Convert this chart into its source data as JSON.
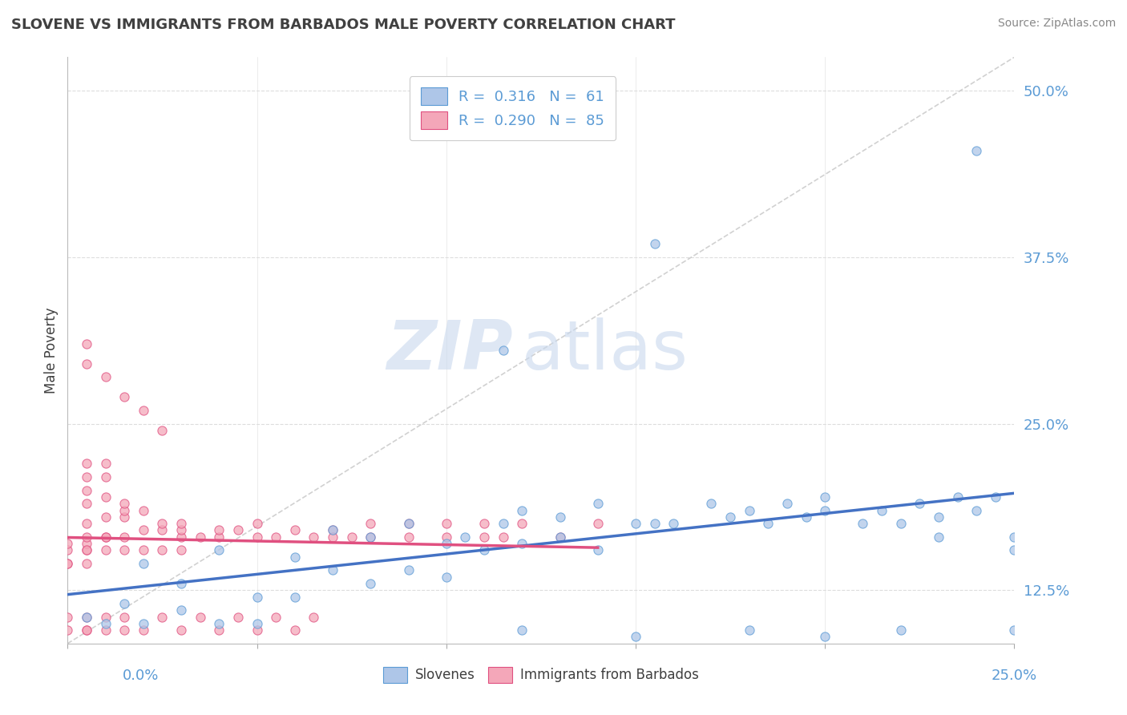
{
  "title": "SLOVENE VS IMMIGRANTS FROM BARBADOS MALE POVERTY CORRELATION CHART",
  "source": "Source: ZipAtlas.com",
  "ylabel": "Male Poverty",
  "xlim": [
    0.0,
    0.25
  ],
  "ylim": [
    0.085,
    0.525
  ],
  "yticks": [
    0.125,
    0.25,
    0.375,
    0.5
  ],
  "ytick_labels": [
    "12.5%",
    "25.0%",
    "37.5%",
    "50.0%"
  ],
  "xtick_labels": [
    "0.0%",
    "25.0%"
  ],
  "watermark_zip": "ZIP",
  "watermark_atlas": "atlas",
  "legend_line1": "R =  0.316   N =  61",
  "legend_line2": "R =  0.290   N =  85",
  "color_slovene_fill": "#aec6e8",
  "color_slovene_edge": "#5b9bd5",
  "color_barbados_fill": "#f4a7b9",
  "color_barbados_edge": "#e05080",
  "line_color_slovene": "#4472c4",
  "line_color_barbados": "#e05080",
  "ref_line_color": "#cccccc",
  "title_color": "#404040",
  "source_color": "#888888",
  "tick_color": "#5b9bd5",
  "grid_color": "#dddddd",
  "legend_text_color": "#5b9bd5",
  "slovene_x": [
    0.005,
    0.01,
    0.015,
    0.02,
    0.02,
    0.03,
    0.03,
    0.04,
    0.04,
    0.05,
    0.05,
    0.06,
    0.06,
    0.07,
    0.07,
    0.08,
    0.08,
    0.09,
    0.09,
    0.1,
    0.1,
    0.105,
    0.11,
    0.115,
    0.12,
    0.12,
    0.13,
    0.13,
    0.14,
    0.14,
    0.15,
    0.155,
    0.16,
    0.17,
    0.175,
    0.18,
    0.185,
    0.19,
    0.195,
    0.2,
    0.2,
    0.21,
    0.215,
    0.22,
    0.225,
    0.23,
    0.235,
    0.24,
    0.245,
    0.25,
    0.115,
    0.24,
    0.155,
    0.25,
    0.22,
    0.2,
    0.18,
    0.15,
    0.12,
    0.25,
    0.23
  ],
  "slovene_y": [
    0.105,
    0.1,
    0.115,
    0.1,
    0.145,
    0.11,
    0.13,
    0.1,
    0.155,
    0.12,
    0.1,
    0.12,
    0.15,
    0.14,
    0.17,
    0.13,
    0.165,
    0.14,
    0.175,
    0.135,
    0.16,
    0.165,
    0.155,
    0.175,
    0.16,
    0.185,
    0.165,
    0.18,
    0.155,
    0.19,
    0.175,
    0.175,
    0.175,
    0.19,
    0.18,
    0.185,
    0.175,
    0.19,
    0.18,
    0.185,
    0.195,
    0.175,
    0.185,
    0.175,
    0.19,
    0.18,
    0.195,
    0.185,
    0.195,
    0.155,
    0.305,
    0.455,
    0.385,
    0.095,
    0.095,
    0.09,
    0.095,
    0.09,
    0.095,
    0.165,
    0.165
  ],
  "barbados_x": [
    0.0,
    0.0,
    0.0,
    0.0,
    0.005,
    0.005,
    0.005,
    0.005,
    0.005,
    0.005,
    0.005,
    0.005,
    0.005,
    0.005,
    0.01,
    0.01,
    0.01,
    0.01,
    0.01,
    0.01,
    0.01,
    0.015,
    0.015,
    0.015,
    0.015,
    0.015,
    0.02,
    0.02,
    0.02,
    0.025,
    0.025,
    0.025,
    0.03,
    0.03,
    0.03,
    0.03,
    0.035,
    0.04,
    0.04,
    0.045,
    0.05,
    0.05,
    0.055,
    0.06,
    0.065,
    0.07,
    0.07,
    0.075,
    0.08,
    0.08,
    0.09,
    0.09,
    0.1,
    0.1,
    0.11,
    0.11,
    0.115,
    0.12,
    0.13,
    0.14,
    0.005,
    0.005,
    0.01,
    0.015,
    0.02,
    0.025,
    0.0,
    0.0,
    0.005,
    0.005,
    0.005,
    0.01,
    0.01,
    0.015,
    0.015,
    0.02,
    0.025,
    0.03,
    0.035,
    0.04,
    0.045,
    0.05,
    0.055,
    0.06,
    0.065
  ],
  "barbados_y": [
    0.145,
    0.155,
    0.145,
    0.16,
    0.145,
    0.155,
    0.16,
    0.175,
    0.19,
    0.2,
    0.21,
    0.22,
    0.155,
    0.165,
    0.165,
    0.18,
    0.195,
    0.21,
    0.22,
    0.155,
    0.165,
    0.165,
    0.18,
    0.185,
    0.19,
    0.155,
    0.17,
    0.185,
    0.155,
    0.17,
    0.175,
    0.155,
    0.155,
    0.165,
    0.17,
    0.175,
    0.165,
    0.165,
    0.17,
    0.17,
    0.165,
    0.175,
    0.165,
    0.17,
    0.165,
    0.17,
    0.165,
    0.165,
    0.165,
    0.175,
    0.165,
    0.175,
    0.165,
    0.175,
    0.165,
    0.175,
    0.165,
    0.175,
    0.165,
    0.175,
    0.295,
    0.31,
    0.285,
    0.27,
    0.26,
    0.245,
    0.095,
    0.105,
    0.095,
    0.105,
    0.095,
    0.095,
    0.105,
    0.095,
    0.105,
    0.095,
    0.105,
    0.095,
    0.105,
    0.095,
    0.105,
    0.095,
    0.105,
    0.095,
    0.105
  ],
  "barbados_line_xmax": 0.14,
  "ref_line_x": [
    0.0,
    0.25
  ],
  "ref_line_y": [
    0.085,
    0.525
  ]
}
